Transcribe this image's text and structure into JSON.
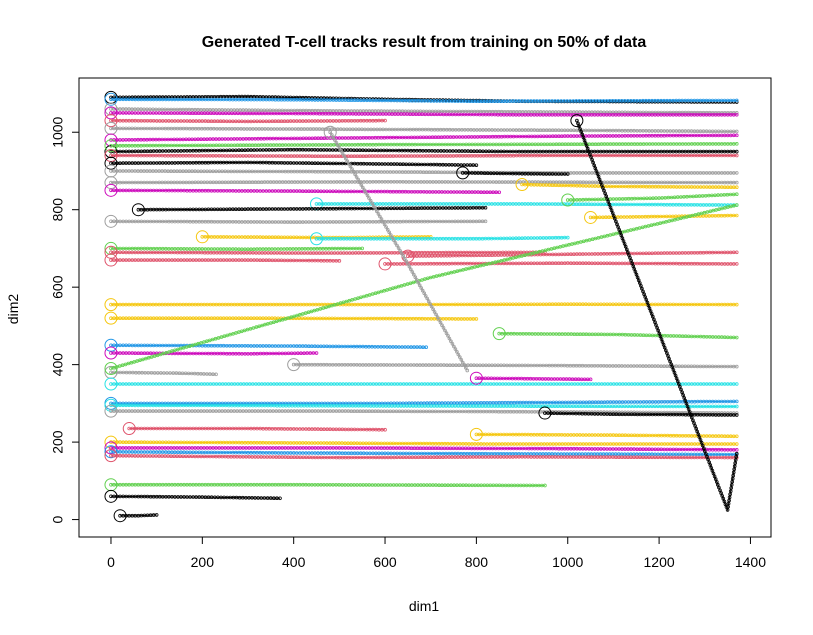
{
  "chart_data": {
    "type": "line",
    "title": "Generated T-cell tracks result from training on 50% of data",
    "xlabel": "dim1",
    "ylabel": "dim2",
    "xlim": [
      -70,
      1445
    ],
    "ylim": [
      -45,
      1140
    ],
    "x_ticks": [
      0,
      200,
      400,
      600,
      800,
      1000,
      1200,
      1400
    ],
    "y_ticks": [
      0,
      200,
      400,
      600,
      800,
      1000
    ],
    "grid": false,
    "legend": "none",
    "marker": "small open circles along each track, large open circle at track start",
    "palette": {
      "black": "#000000",
      "red": "#DF536B",
      "green": "#61D04F",
      "blue": "#2297E6",
      "cyan": "#28E2E5",
      "magenta": "#CD0BBC",
      "yellow": "#F5C710",
      "gray": "#9E9E9E"
    },
    "series": [
      {
        "color": "black",
        "points": [
          [
            0,
            1090
          ],
          [
            300,
            1092
          ],
          [
            600,
            1085
          ],
          [
            900,
            1080
          ],
          [
            1370,
            1078
          ]
        ]
      },
      {
        "color": "blue",
        "points": [
          [
            0,
            1085
          ],
          [
            400,
            1084
          ],
          [
            800,
            1080
          ],
          [
            1370,
            1082
          ]
        ]
      },
      {
        "color": "gray",
        "points": [
          [
            0,
            1060
          ],
          [
            500,
            1055
          ],
          [
            1000,
            1052
          ],
          [
            1370,
            1050
          ]
        ]
      },
      {
        "color": "magenta",
        "points": [
          [
            0,
            1050
          ],
          [
            450,
            1048
          ],
          [
            900,
            1045
          ],
          [
            1370,
            1045
          ]
        ]
      },
      {
        "color": "red",
        "points": [
          [
            0,
            1030
          ],
          [
            300,
            1028
          ],
          [
            600,
            1030
          ]
        ]
      },
      {
        "color": "gray",
        "points": [
          [
            0,
            1010
          ],
          [
            450,
            1008
          ],
          [
            1000,
            1005
          ],
          [
            1370,
            1002
          ]
        ]
      },
      {
        "color": "magenta",
        "points": [
          [
            0,
            980
          ],
          [
            500,
            985
          ],
          [
            1000,
            990
          ],
          [
            1370,
            992
          ]
        ]
      },
      {
        "color": "black",
        "points": [
          [
            0,
            950
          ],
          [
            400,
            955
          ],
          [
            900,
            950
          ],
          [
            1370,
            950
          ]
        ]
      },
      {
        "color": "green",
        "points": [
          [
            0,
            965
          ],
          [
            600,
            968
          ],
          [
            1370,
            970
          ]
        ]
      },
      {
        "color": "red",
        "points": [
          [
            0,
            940
          ],
          [
            500,
            938
          ],
          [
            1000,
            940
          ],
          [
            1370,
            940
          ]
        ]
      },
      {
        "color": "black",
        "points": [
          [
            0,
            920
          ],
          [
            300,
            922
          ],
          [
            600,
            918
          ],
          [
            800,
            915
          ]
        ]
      },
      {
        "color": "gray",
        "points": [
          [
            0,
            900
          ],
          [
            500,
            898
          ],
          [
            1000,
            895
          ],
          [
            1370,
            895
          ]
        ]
      },
      {
        "color": "black",
        "points": [
          [
            770,
            895
          ],
          [
            900,
            893
          ],
          [
            1000,
            892
          ]
        ]
      },
      {
        "color": "gray",
        "points": [
          [
            0,
            870
          ],
          [
            600,
            872
          ],
          [
            1370,
            870
          ]
        ]
      },
      {
        "color": "yellow",
        "points": [
          [
            900,
            865
          ],
          [
            1100,
            860
          ],
          [
            1370,
            858
          ]
        ]
      },
      {
        "color": "magenta",
        "points": [
          [
            0,
            850
          ],
          [
            400,
            848
          ],
          [
            850,
            845
          ]
        ]
      },
      {
        "color": "cyan",
        "points": [
          [
            450,
            815
          ],
          [
            900,
            815
          ],
          [
            1370,
            812
          ]
        ]
      },
      {
        "color": "black",
        "points": [
          [
            60,
            800
          ],
          [
            400,
            802
          ],
          [
            820,
            805
          ]
        ]
      },
      {
        "color": "green",
        "points": [
          [
            1000,
            825
          ],
          [
            1200,
            830
          ],
          [
            1370,
            840
          ]
        ]
      },
      {
        "color": "gray",
        "points": [
          [
            0,
            770
          ],
          [
            400,
            768
          ],
          [
            820,
            770
          ]
        ]
      },
      {
        "color": "yellow",
        "points": [
          [
            1050,
            780
          ],
          [
            1370,
            785
          ]
        ]
      },
      {
        "color": "yellow",
        "points": [
          [
            200,
            730
          ],
          [
            500,
            728
          ],
          [
            700,
            730
          ]
        ]
      },
      {
        "color": "cyan",
        "points": [
          [
            450,
            725
          ],
          [
            800,
            725
          ],
          [
            1000,
            728
          ]
        ]
      },
      {
        "color": "green",
        "points": [
          [
            0,
            700
          ],
          [
            300,
            698
          ],
          [
            550,
            700
          ]
        ]
      },
      {
        "color": "red",
        "points": [
          [
            0,
            690
          ],
          [
            450,
            688
          ],
          [
            950,
            690
          ]
        ]
      },
      {
        "color": "red",
        "points": [
          [
            650,
            680
          ],
          [
            1000,
            685
          ],
          [
            1370,
            690
          ]
        ]
      },
      {
        "color": "red",
        "points": [
          [
            0,
            670
          ],
          [
            300,
            670
          ],
          [
            500,
            668
          ]
        ]
      },
      {
        "color": "red",
        "points": [
          [
            600,
            660
          ],
          [
            1000,
            662
          ],
          [
            1370,
            660
          ]
        ]
      },
      {
        "color": "yellow",
        "points": [
          [
            0,
            555
          ],
          [
            600,
            555
          ],
          [
            1000,
            556
          ],
          [
            1370,
            555
          ]
        ]
      },
      {
        "color": "yellow",
        "points": [
          [
            0,
            520
          ],
          [
            300,
            520
          ],
          [
            800,
            518
          ]
        ]
      },
      {
        "color": "green",
        "points": [
          [
            850,
            480
          ],
          [
            1100,
            478
          ],
          [
            1370,
            470
          ]
        ]
      },
      {
        "color": "blue",
        "points": [
          [
            0,
            450
          ],
          [
            400,
            448
          ],
          [
            690,
            445
          ]
        ]
      },
      {
        "color": "magenta",
        "points": [
          [
            0,
            430
          ],
          [
            300,
            428
          ],
          [
            450,
            430
          ]
        ]
      },
      {
        "color": "gray",
        "points": [
          [
            400,
            400
          ],
          [
            900,
            398
          ],
          [
            1370,
            395
          ]
        ]
      },
      {
        "color": "gray",
        "points": [
          [
            0,
            380
          ],
          [
            150,
            378
          ],
          [
            230,
            375
          ]
        ]
      },
      {
        "color": "cyan",
        "points": [
          [
            0,
            350
          ],
          [
            700,
            350
          ],
          [
            1370,
            350
          ]
        ]
      },
      {
        "color": "magenta",
        "points": [
          [
            800,
            365
          ],
          [
            1050,
            362
          ]
        ]
      },
      {
        "color": "blue",
        "points": [
          [
            0,
            300
          ],
          [
            600,
            300
          ],
          [
            1370,
            305
          ]
        ]
      },
      {
        "color": "cyan",
        "points": [
          [
            0,
            295
          ],
          [
            800,
            293
          ],
          [
            1370,
            292
          ]
        ]
      },
      {
        "color": "gray",
        "points": [
          [
            0,
            280
          ],
          [
            500,
            280
          ],
          [
            1000,
            278
          ],
          [
            1370,
            275
          ]
        ]
      },
      {
        "color": "black",
        "points": [
          [
            950,
            275
          ],
          [
            1100,
            272
          ],
          [
            1370,
            270
          ]
        ]
      },
      {
        "color": "red",
        "points": [
          [
            40,
            235
          ],
          [
            300,
            235
          ],
          [
            600,
            232
          ]
        ]
      },
      {
        "color": "yellow",
        "points": [
          [
            800,
            220
          ],
          [
            1100,
            218
          ],
          [
            1370,
            215
          ]
        ]
      },
      {
        "color": "yellow",
        "points": [
          [
            0,
            200
          ],
          [
            400,
            198
          ],
          [
            850,
            195
          ],
          [
            1370,
            195
          ]
        ]
      },
      {
        "color": "magenta",
        "points": [
          [
            0,
            185
          ],
          [
            500,
            185
          ],
          [
            1000,
            183
          ],
          [
            1370,
            180
          ]
        ]
      },
      {
        "color": "blue",
        "points": [
          [
            0,
            175
          ],
          [
            400,
            172
          ],
          [
            800,
            170
          ],
          [
            1370,
            168
          ]
        ]
      },
      {
        "color": "red",
        "points": [
          [
            0,
            165
          ],
          [
            500,
            160
          ],
          [
            900,
            162
          ],
          [
            1370,
            160
          ]
        ]
      },
      {
        "color": "green",
        "points": [
          [
            0,
            90
          ],
          [
            400,
            90
          ],
          [
            950,
            88
          ]
        ]
      },
      {
        "color": "black",
        "points": [
          [
            0,
            60
          ],
          [
            200,
            58
          ],
          [
            370,
            55
          ]
        ]
      },
      {
        "color": "black",
        "points": [
          [
            20,
            10
          ],
          [
            60,
            10
          ],
          [
            100,
            12
          ]
        ]
      },
      {
        "color": "green",
        "points": [
          [
            0,
            390
          ],
          [
            700,
            625
          ],
          [
            1370,
            812
          ]
        ]
      },
      {
        "color": "black",
        "points": [
          [
            1020,
            1030
          ],
          [
            1350,
            25
          ],
          [
            1370,
            170
          ]
        ]
      },
      {
        "color": "gray",
        "points": [
          [
            480,
            1000
          ],
          [
            650,
            660
          ],
          [
            780,
            385
          ]
        ]
      }
    ]
  }
}
